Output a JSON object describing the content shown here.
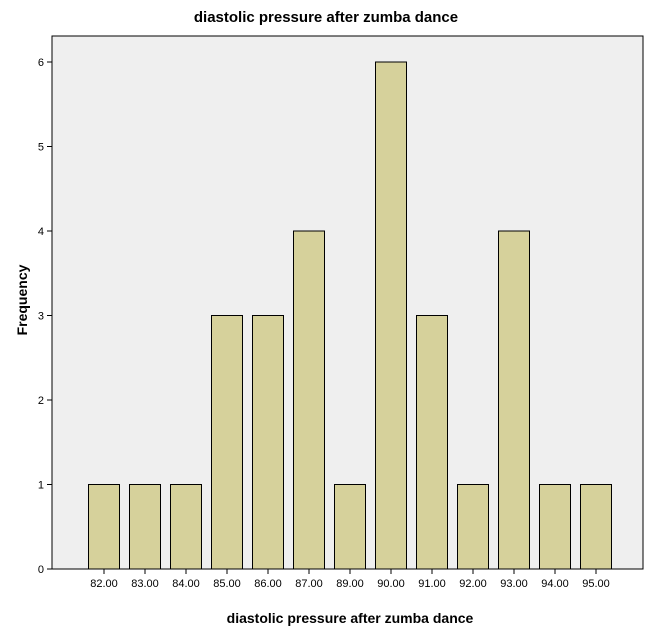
{
  "chart_data": {
    "type": "bar",
    "title": "diastolic pressure after zumba dance",
    "xlabel": "diastolic pressure after zumba dance",
    "ylabel": "Frequency",
    "categories": [
      "82.00",
      "83.00",
      "84.00",
      "85.00",
      "86.00",
      "87.00",
      "89.00",
      "90.00",
      "91.00",
      "92.00",
      "93.00",
      "94.00",
      "95.00"
    ],
    "values": [
      1,
      1,
      1,
      3,
      3,
      4,
      1,
      6,
      3,
      1,
      4,
      1,
      1
    ],
    "ylim": [
      0,
      6
    ],
    "yticks": [
      "0",
      "1",
      "2",
      "3",
      "4",
      "5",
      "6"
    ],
    "grid": false,
    "colors": {
      "bar_fill": "#d6d19b",
      "bar_stroke": "#000000",
      "plot_background": "#efefef",
      "page_background": "#ffffff"
    }
  }
}
